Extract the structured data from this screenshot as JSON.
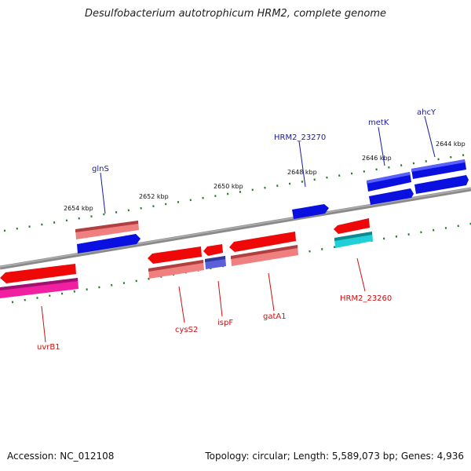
{
  "title": "Desulfobacterium autotrophicum HRM2, complete genome",
  "footer": {
    "accession": "Accession: NC_012108",
    "summary": "Topology: circular; Length: 5,589,073 bp; Genes: 4,936"
  },
  "colors": {
    "backbone": "#808080",
    "tick_outer": "#2a7a2a",
    "tick_inner": "#2a7a2a",
    "label_forward": "#1a1aa0",
    "label_reverse": "#cc1010",
    "feature_blue": "#0a10e0",
    "feature_red": "#ee0808",
    "feature_pink": "#f08080",
    "feature_slate": "#5a60d8",
    "feature_cyan": "#20d0d8",
    "feature_magenta": "#f020a0"
  },
  "kbp_labels": [
    "2644 kbp",
    "2646 kbp",
    "2648 kbp",
    "2650 kbp",
    "2652 kbp",
    "2654 kbp"
  ],
  "gene_labels_top": [
    "ahcY",
    "metK",
    "HRM2_23270",
    "glnS"
  ],
  "gene_labels_bottom": [
    "HRM2_23260",
    "gatA1",
    "ispF",
    "cysS2",
    "uvrB1"
  ]
}
